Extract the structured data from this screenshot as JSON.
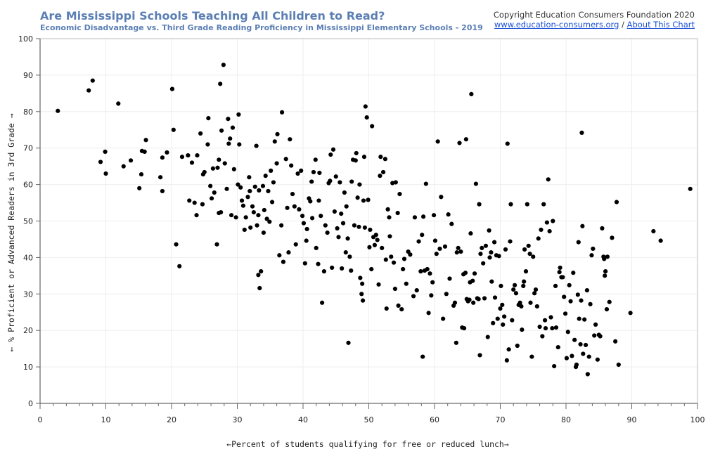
{
  "header": {
    "title": "Are Mississippi Schools Teaching All Children to Read?",
    "subtitle": "Economic Disadvantage vs. Third Grade Reading Proficiency in Mississippi Elementary Schools - 2019",
    "copyright": "Copyright Education Consumers Foundation 2020",
    "site_link": "www.education-consumers.org",
    "separator": "/",
    "about_link": "About This Chart"
  },
  "colors": {
    "title": "#5b7fb3",
    "point": "#000000",
    "link": "#1a4fd6",
    "grid": "#eeeeee",
    "plot_border": "#bbbbbb"
  },
  "chart_data": {
    "type": "scatter",
    "title": "Are Mississippi Schools Teaching All Children to Read?",
    "subtitle": "Economic Disadvantage vs. Third Grade Reading Proficiency in Mississippi Elementary Schools - 2019",
    "xlabel": "←Percent of students qualifying for free or reduced lunch→",
    "ylabel": "← % Proficient or Advanced Readers in 3rd Grade →",
    "xlim": [
      0,
      100
    ],
    "ylim": [
      0,
      100
    ],
    "x_ticks": [
      0,
      10,
      20,
      30,
      40,
      50,
      60,
      70,
      80,
      90,
      100
    ],
    "y_ticks": [
      0,
      10,
      20,
      30,
      40,
      50,
      60,
      70,
      80,
      90,
      100
    ],
    "grid": true,
    "legend": "none",
    "points": [
      [
        2.7,
        80.2
      ],
      [
        7.4,
        85.8
      ],
      [
        8.0,
        88.5
      ],
      [
        9.2,
        66.2
      ],
      [
        9.9,
        69.0
      ],
      [
        10.0,
        63.0
      ],
      [
        11.9,
        82.2
      ],
      [
        12.7,
        65.0
      ],
      [
        13.8,
        66.6
      ],
      [
        15.1,
        59.0
      ],
      [
        15.5,
        69.2
      ],
      [
        15.9,
        69.0
      ],
      [
        16.1,
        72.2
      ],
      [
        15.4,
        62.8
      ],
      [
        18.3,
        62.0
      ],
      [
        18.6,
        58.2
      ],
      [
        18.6,
        67.4
      ],
      [
        19.3,
        68.8
      ],
      [
        20.1,
        86.2
      ],
      [
        20.3,
        75.0
      ],
      [
        20.7,
        43.6
      ],
      [
        21.2,
        37.6
      ],
      [
        21.6,
        67.6
      ],
      [
        22.5,
        68.0
      ],
      [
        22.7,
        55.6
      ],
      [
        23.1,
        66.0
      ],
      [
        23.5,
        55.0
      ],
      [
        23.8,
        51.6
      ],
      [
        23.9,
        68.0
      ],
      [
        24.4,
        74.0
      ],
      [
        24.7,
        54.6
      ],
      [
        24.8,
        62.8
      ],
      [
        25.0,
        63.4
      ],
      [
        25.5,
        71.0
      ],
      [
        25.6,
        78.2
      ],
      [
        25.9,
        59.6
      ],
      [
        26.1,
        56.2
      ],
      [
        26.3,
        64.4
      ],
      [
        26.5,
        57.8
      ],
      [
        26.9,
        43.6
      ],
      [
        27.0,
        64.6
      ],
      [
        27.2,
        52.2
      ],
      [
        27.2,
        66.8
      ],
      [
        27.4,
        87.6
      ],
      [
        27.5,
        52.4
      ],
      [
        27.6,
        74.8
      ],
      [
        27.9,
        92.8
      ],
      [
        28.1,
        65.8
      ],
      [
        28.4,
        58.8
      ],
      [
        28.6,
        78.0
      ],
      [
        28.7,
        71.2
      ],
      [
        28.9,
        72.6
      ],
      [
        29.1,
        51.6
      ],
      [
        29.3,
        75.6
      ],
      [
        29.5,
        64.2
      ],
      [
        29.8,
        51.0
      ],
      [
        30.1,
        60.0
      ],
      [
        30.2,
        79.2
      ],
      [
        30.3,
        71.0
      ],
      [
        30.5,
        59.2
      ],
      [
        30.7,
        55.6
      ],
      [
        30.9,
        54.2
      ],
      [
        31.1,
        47.6
      ],
      [
        31.3,
        51.0
      ],
      [
        31.6,
        56.6
      ],
      [
        31.8,
        62.0
      ],
      [
        31.9,
        58.2
      ],
      [
        32.0,
        48.2
      ],
      [
        32.3,
        54.0
      ],
      [
        32.5,
        52.4
      ],
      [
        32.7,
        59.4
      ],
      [
        32.9,
        70.6
      ],
      [
        33.0,
        48.8
      ],
      [
        33.2,
        35.2
      ],
      [
        33.2,
        51.6
      ],
      [
        33.3,
        58.4
      ],
      [
        33.4,
        31.6
      ],
      [
        33.6,
        36.2
      ],
      [
        33.9,
        59.6
      ],
      [
        34.0,
        46.8
      ],
      [
        34.1,
        53.0
      ],
      [
        34.3,
        62.4
      ],
      [
        34.5,
        50.6
      ],
      [
        34.7,
        58.2
      ],
      [
        34.9,
        49.8
      ],
      [
        35.1,
        63.8
      ],
      [
        35.3,
        55.2
      ],
      [
        35.5,
        60.6
      ],
      [
        35.7,
        71.8
      ],
      [
        36.0,
        65.8
      ],
      [
        36.1,
        73.8
      ],
      [
        36.4,
        40.6
      ],
      [
        36.7,
        48.8
      ],
      [
        36.8,
        79.8
      ],
      [
        37.0,
        38.8
      ],
      [
        37.4,
        67.0
      ],
      [
        37.6,
        53.6
      ],
      [
        37.8,
        41.4
      ],
      [
        38.0,
        72.4
      ],
      [
        38.2,
        65.2
      ],
      [
        38.4,
        57.4
      ],
      [
        38.7,
        54.0
      ],
      [
        38.9,
        43.6
      ],
      [
        39.2,
        63.0
      ],
      [
        39.4,
        53.2
      ],
      [
        39.7,
        63.8
      ],
      [
        39.9,
        51.4
      ],
      [
        40.1,
        49.4
      ],
      [
        40.3,
        38.4
      ],
      [
        40.5,
        44.6
      ],
      [
        40.6,
        47.8
      ],
      [
        40.9,
        56.2
      ],
      [
        41.1,
        55.4
      ],
      [
        41.3,
        60.8
      ],
      [
        41.4,
        50.8
      ],
      [
        41.6,
        63.4
      ],
      [
        41.9,
        66.8
      ],
      [
        42.0,
        42.6
      ],
      [
        42.3,
        38.2
      ],
      [
        42.4,
        55.6
      ],
      [
        42.5,
        63.2
      ],
      [
        42.7,
        51.4
      ],
      [
        42.9,
        27.6
      ],
      [
        43.2,
        36.2
      ],
      [
        43.4,
        48.8
      ],
      [
        43.7,
        46.8
      ],
      [
        43.9,
        60.4
      ],
      [
        44.1,
        61.0
      ],
      [
        44.2,
        68.2
      ],
      [
        44.4,
        37.2
      ],
      [
        44.6,
        69.6
      ],
      [
        44.8,
        52.6
      ],
      [
        45.0,
        62.2
      ],
      [
        45.2,
        48.0
      ],
      [
        45.4,
        45.6
      ],
      [
        45.6,
        60.6
      ],
      [
        45.8,
        52.0
      ],
      [
        45.9,
        37.0
      ],
      [
        46.1,
        49.4
      ],
      [
        46.3,
        57.8
      ],
      [
        46.5,
        41.4
      ],
      [
        46.6,
        54.0
      ],
      [
        46.8,
        45.2
      ],
      [
        46.9,
        16.6
      ],
      [
        47.1,
        40.2
      ],
      [
        47.3,
        36.4
      ],
      [
        47.4,
        60.8
      ],
      [
        47.6,
        66.8
      ],
      [
        47.8,
        48.8
      ],
      [
        48.0,
        66.6
      ],
      [
        48.1,
        68.6
      ],
      [
        48.3,
        56.4
      ],
      [
        48.5,
        48.4
      ],
      [
        48.6,
        60.0
      ],
      [
        48.7,
        34.4
      ],
      [
        48.9,
        30.0
      ],
      [
        49.0,
        32.8
      ],
      [
        49.1,
        28.2
      ],
      [
        49.2,
        55.6
      ],
      [
        49.3,
        67.6
      ],
      [
        49.4,
        48.2
      ],
      [
        49.5,
        81.4
      ],
      [
        49.7,
        78.4
      ],
      [
        49.9,
        55.8
      ],
      [
        50.1,
        42.8
      ],
      [
        50.2,
        47.6
      ],
      [
        50.4,
        36.8
      ],
      [
        50.5,
        76.0
      ],
      [
        50.7,
        45.6
      ],
      [
        50.9,
        43.4
      ],
      [
        51.1,
        46.2
      ],
      [
        51.3,
        44.8
      ],
      [
        51.5,
        32.6
      ],
      [
        51.7,
        62.4
      ],
      [
        51.8,
        67.6
      ],
      [
        52.0,
        42.6
      ],
      [
        52.2,
        63.4
      ],
      [
        52.5,
        67.0
      ],
      [
        52.6,
        39.4
      ],
      [
        52.7,
        26.0
      ],
      [
        52.9,
        53.2
      ],
      [
        53.1,
        51.0
      ],
      [
        53.2,
        45.8
      ],
      [
        53.4,
        40.2
      ],
      [
        53.6,
        60.4
      ],
      [
        53.8,
        38.6
      ],
      [
        54.0,
        31.4
      ],
      [
        54.1,
        60.6
      ],
      [
        54.4,
        52.2
      ],
      [
        54.5,
        26.8
      ],
      [
        54.7,
        57.4
      ],
      [
        55.0,
        25.8
      ],
      [
        55.2,
        36.8
      ],
      [
        55.4,
        39.6
      ],
      [
        55.7,
        32.8
      ],
      [
        56.0,
        41.6
      ],
      [
        56.3,
        40.8
      ],
      [
        56.8,
        29.4
      ],
      [
        57.0,
        51.0
      ],
      [
        57.3,
        31.0
      ],
      [
        57.6,
        44.4
      ],
      [
        57.9,
        36.2
      ],
      [
        58.1,
        46.2
      ],
      [
        58.2,
        12.8
      ],
      [
        58.3,
        51.2
      ],
      [
        58.5,
        36.4
      ],
      [
        58.7,
        60.2
      ],
      [
        58.9,
        36.8
      ],
      [
        59.1,
        24.8
      ],
      [
        59.3,
        35.6
      ],
      [
        59.5,
        29.6
      ],
      [
        59.7,
        33.2
      ],
      [
        59.9,
        51.6
      ],
      [
        60.1,
        44.6
      ],
      [
        60.3,
        41.0
      ],
      [
        60.5,
        71.8
      ],
      [
        60.8,
        42.4
      ],
      [
        61.0,
        56.6
      ],
      [
        61.3,
        23.2
      ],
      [
        61.6,
        43.0
      ],
      [
        61.8,
        30.0
      ],
      [
        62.1,
        51.8
      ],
      [
        62.3,
        34.2
      ],
      [
        62.6,
        49.2
      ],
      [
        62.9,
        26.8
      ],
      [
        63.1,
        27.6
      ],
      [
        63.3,
        16.6
      ],
      [
        63.4,
        41.4
      ],
      [
        63.6,
        42.6
      ],
      [
        63.8,
        71.4
      ],
      [
        64.0,
        41.6
      ],
      [
        64.2,
        20.8
      ],
      [
        64.4,
        35.4
      ],
      [
        64.5,
        20.6
      ],
      [
        64.7,
        35.8
      ],
      [
        64.8,
        72.4
      ],
      [
        64.9,
        28.6
      ],
      [
        65.1,
        28.0
      ],
      [
        65.3,
        28.4
      ],
      [
        65.4,
        33.2
      ],
      [
        65.5,
        46.6
      ],
      [
        65.6,
        84.8
      ],
      [
        65.8,
        33.6
      ],
      [
        65.9,
        27.6
      ],
      [
        66.1,
        35.6
      ],
      [
        66.3,
        60.2
      ],
      [
        66.5,
        28.8
      ],
      [
        66.7,
        28.6
      ],
      [
        66.8,
        54.6
      ],
      [
        66.9,
        13.2
      ],
      [
        67.0,
        41.0
      ],
      [
        67.2,
        42.6
      ],
      [
        67.4,
        38.4
      ],
      [
        67.6,
        28.8
      ],
      [
        67.8,
        43.2
      ],
      [
        68.1,
        18.2
      ],
      [
        68.3,
        47.4
      ],
      [
        68.4,
        40.0
      ],
      [
        68.6,
        41.4
      ],
      [
        68.7,
        33.4
      ],
      [
        68.9,
        22.0
      ],
      [
        69.1,
        44.2
      ],
      [
        69.2,
        29.0
      ],
      [
        69.4,
        40.6
      ],
      [
        69.6,
        23.2
      ],
      [
        69.8,
        40.4
      ],
      [
        70.0,
        26.0
      ],
      [
        70.1,
        32.2
      ],
      [
        70.3,
        27.0
      ],
      [
        70.4,
        21.6
      ],
      [
        70.6,
        23.8
      ],
      [
        70.8,
        42.2
      ],
      [
        71.0,
        11.8
      ],
      [
        71.1,
        71.2
      ],
      [
        71.3,
        14.8
      ],
      [
        71.5,
        44.4
      ],
      [
        71.6,
        54.6
      ],
      [
        71.8,
        22.8
      ],
      [
        72.0,
        31.2
      ],
      [
        72.2,
        32.4
      ],
      [
        72.4,
        30.2
      ],
      [
        72.6,
        15.8
      ],
      [
        72.8,
        27.0
      ],
      [
        73.0,
        27.6
      ],
      [
        73.2,
        26.6
      ],
      [
        73.3,
        20.2
      ],
      [
        73.5,
        32.2
      ],
      [
        73.6,
        33.4
      ],
      [
        73.7,
        42.2
      ],
      [
        73.9,
        36.2
      ],
      [
        74.1,
        54.6
      ],
      [
        74.3,
        43.2
      ],
      [
        74.5,
        41.0
      ],
      [
        74.6,
        27.6
      ],
      [
        74.8,
        12.8
      ],
      [
        75.0,
        40.2
      ],
      [
        75.2,
        30.2
      ],
      [
        75.4,
        31.2
      ],
      [
        75.6,
        26.6
      ],
      [
        75.8,
        45.2
      ],
      [
        76.0,
        21.0
      ],
      [
        76.2,
        47.6
      ],
      [
        76.4,
        18.4
      ],
      [
        76.6,
        54.6
      ],
      [
        76.8,
        22.8
      ],
      [
        76.9,
        20.6
      ],
      [
        77.1,
        49.6
      ],
      [
        77.3,
        61.4
      ],
      [
        77.5,
        47.2
      ],
      [
        77.7,
        23.6
      ],
      [
        77.9,
        20.6
      ],
      [
        78.0,
        50.0
      ],
      [
        78.2,
        10.2
      ],
      [
        78.4,
        32.2
      ],
      [
        78.5,
        20.8
      ],
      [
        78.8,
        15.4
      ],
      [
        79.0,
        36.0
      ],
      [
        79.1,
        37.2
      ],
      [
        79.3,
        34.6
      ],
      [
        79.5,
        34.6
      ],
      [
        79.7,
        29.2
      ],
      [
        79.9,
        24.6
      ],
      [
        80.1,
        12.4
      ],
      [
        80.3,
        19.6
      ],
      [
        80.5,
        32.4
      ],
      [
        80.7,
        28.0
      ],
      [
        80.9,
        13.0
      ],
      [
        81.1,
        35.8
      ],
      [
        81.3,
        17.4
      ],
      [
        81.5,
        10.0
      ],
      [
        81.6,
        10.6
      ],
      [
        81.8,
        29.8
      ],
      [
        81.9,
        44.2
      ],
      [
        82.0,
        23.2
      ],
      [
        82.2,
        16.2
      ],
      [
        82.3,
        28.2
      ],
      [
        82.4,
        74.2
      ],
      [
        82.5,
        48.6
      ],
      [
        82.6,
        13.6
      ],
      [
        82.8,
        23.0
      ],
      [
        83.0,
        16.0
      ],
      [
        83.2,
        31.0
      ],
      [
        83.3,
        8.0
      ],
      [
        83.5,
        12.8
      ],
      [
        83.7,
        27.2
      ],
      [
        83.9,
        40.6
      ],
      [
        84.1,
        42.4
      ],
      [
        84.3,
        18.6
      ],
      [
        84.5,
        21.6
      ],
      [
        84.8,
        12.0
      ],
      [
        85.0,
        18.8
      ],
      [
        85.2,
        18.4
      ],
      [
        85.5,
        48.0
      ],
      [
        85.7,
        40.2
      ],
      [
        85.8,
        39.6
      ],
      [
        85.9,
        35.0
      ],
      [
        86.0,
        36.2
      ],
      [
        86.2,
        25.8
      ],
      [
        86.3,
        40.2
      ],
      [
        86.6,
        27.8
      ],
      [
        87.0,
        45.4
      ],
      [
        87.5,
        17.0
      ],
      [
        87.7,
        55.2
      ],
      [
        88.0,
        10.6
      ],
      [
        89.8,
        24.8
      ],
      [
        93.3,
        47.2
      ],
      [
        94.4,
        44.6
      ],
      [
        98.9,
        58.8
      ]
    ]
  }
}
